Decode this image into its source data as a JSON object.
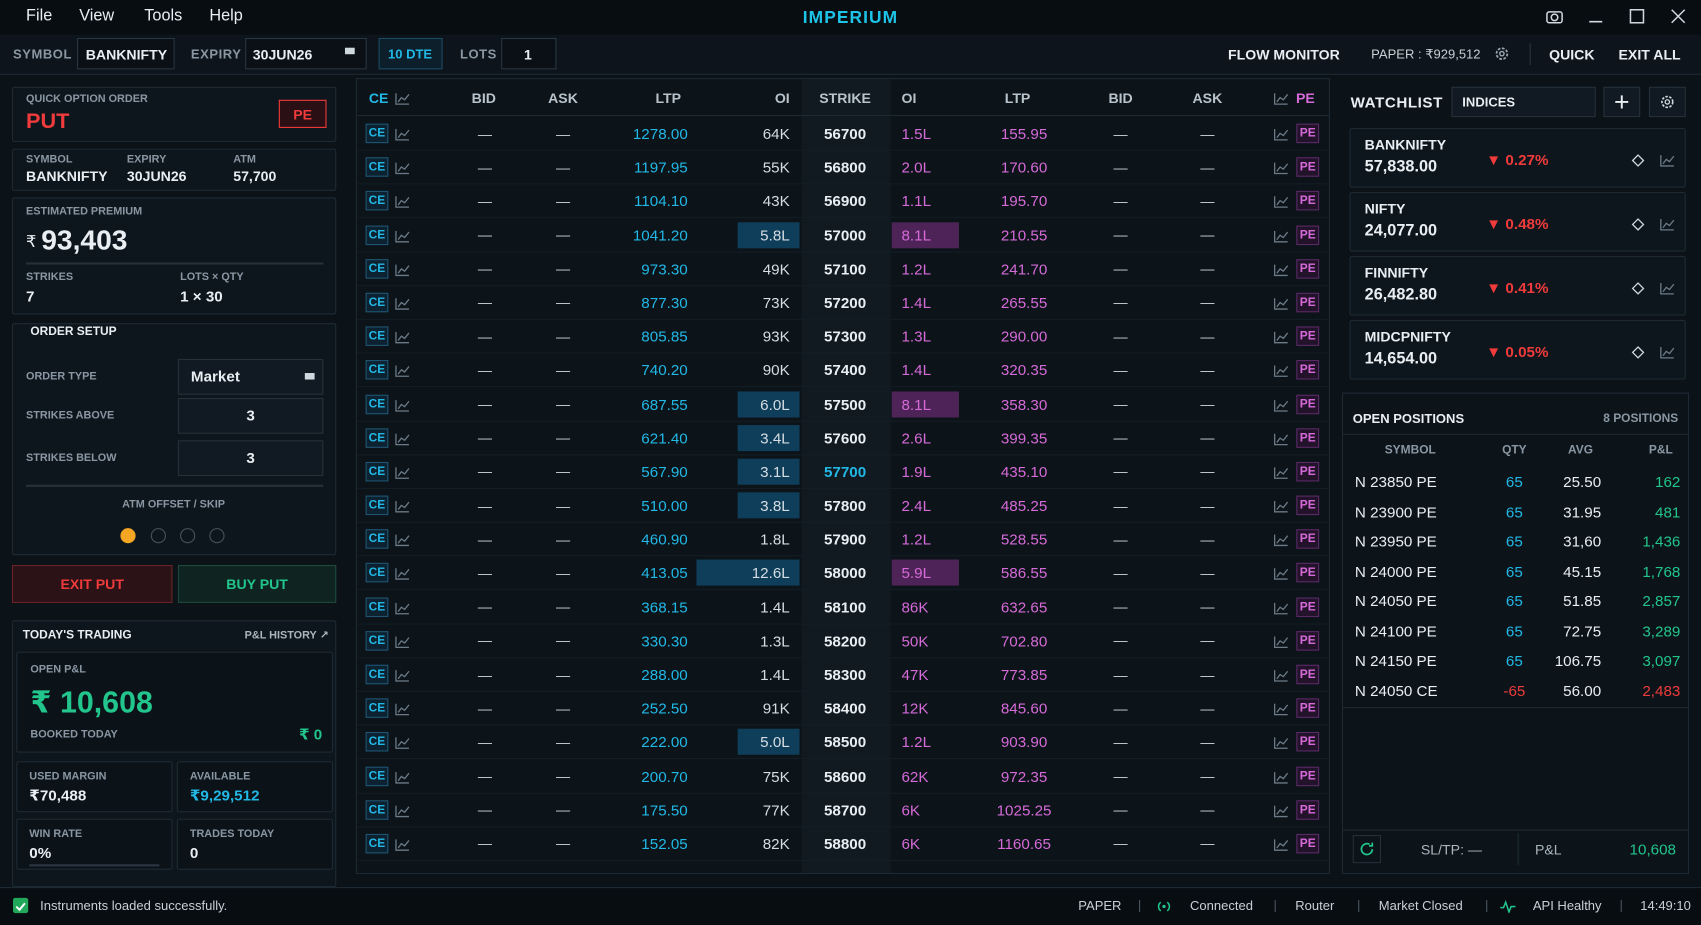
{
  "app": {
    "menu": [
      "File",
      "View",
      "Tools",
      "Help"
    ],
    "title": "IMPERIUM"
  },
  "toolbar": {
    "symbol_label": "SYMBOL",
    "symbol": "BANKNIFTY",
    "expiry_label": "EXPIRY",
    "expiry": "30JUN26",
    "dte": "10 DTE",
    "lots_label": "LOTS",
    "lots": "1",
    "flow_monitor": "FLOW MONITOR",
    "paper": "PAPER : ₹929,512",
    "quick": "QUICK",
    "exit_all": "EXIT ALL"
  },
  "quick_order": {
    "heading": "QUICK OPTION ORDER",
    "side": "PUT",
    "badge": "PE",
    "info": [
      {
        "label": "SYMBOL",
        "value": "BANKNIFTY"
      },
      {
        "label": "EXPIRY",
        "value": "30JUN26"
      },
      {
        "label": "ATM",
        "value": "57,700"
      }
    ],
    "premium_label": "ESTIMATED PREMIUM",
    "currency": "₹",
    "premium": "93,403",
    "strikes_label": "STRIKES",
    "strikes": "7",
    "lots_qty_label": "LOTS × QTY",
    "lots_qty": "1 × 30"
  },
  "order_setup": {
    "title": "ORDER SETUP",
    "rows": [
      {
        "label": "ORDER TYPE",
        "value": "Market"
      },
      {
        "label": "STRIKES ABOVE",
        "value": "3"
      },
      {
        "label": "STRIKES BELOW",
        "value": "3"
      }
    ],
    "offset_label": "ATM OFFSET / SKIP",
    "exit_button": "EXIT PUT",
    "buy_button": "BUY PUT"
  },
  "trading": {
    "title": "TODAY'S TRADING",
    "history": "P&L HISTORY ↗",
    "open_pnl_label": "OPEN P&L",
    "open_pnl": "₹ 10,608",
    "booked_label": "BOOKED TODAY",
    "booked": "₹ 0",
    "stats": [
      {
        "label": "USED MARGIN",
        "value": "₹70,488"
      },
      {
        "label": "AVAILABLE",
        "value": "₹9,29,512"
      },
      {
        "label": "WIN RATE",
        "value": "0%"
      },
      {
        "label": "TRADES TODAY",
        "value": "0"
      }
    ]
  },
  "chain": {
    "headers": [
      "CE",
      "BID",
      "ASK",
      "LTP",
      "OI",
      "STRIKE",
      "OI",
      "LTP",
      "BID",
      "ASK",
      "PE"
    ],
    "ce_tag": "CE",
    "pe_tag": "PE",
    "atm_strike": 57700,
    "rows": [
      {
        "ce_bid": "—",
        "ce_ask": "—",
        "ce_ltp": "1278.00",
        "ce_oi": "64K",
        "strike": 56700,
        "pe_oi": "1.5L",
        "pe_ltp": "155.95",
        "pe_bid": "—",
        "pe_ask": "—"
      },
      {
        "ce_bid": "—",
        "ce_ask": "—",
        "ce_ltp": "1197.95",
        "ce_oi": "55K",
        "strike": 56800,
        "pe_oi": "2.0L",
        "pe_ltp": "170.60",
        "pe_bid": "—",
        "pe_ask": "—"
      },
      {
        "ce_bid": "—",
        "ce_ask": "—",
        "ce_ltp": "1104.10",
        "ce_oi": "43K",
        "strike": 56900,
        "pe_oi": "1.1L",
        "pe_ltp": "195.70",
        "pe_bid": "—",
        "pe_ask": "—"
      },
      {
        "ce_bid": "—",
        "ce_ask": "—",
        "ce_ltp": "1041.20",
        "ce_oi": "5.8L",
        "ce_hl": true,
        "strike": 57000,
        "pe_oi": "8.1L",
        "pe_hl": true,
        "pe_ltp": "210.55",
        "pe_bid": "—",
        "pe_ask": "—"
      },
      {
        "ce_bid": "—",
        "ce_ask": "—",
        "ce_ltp": "973.30",
        "ce_oi": "49K",
        "strike": 57100,
        "pe_oi": "1.2L",
        "pe_ltp": "241.70",
        "pe_bid": "—",
        "pe_ask": "—"
      },
      {
        "ce_bid": "—",
        "ce_ask": "—",
        "ce_ltp": "877.30",
        "ce_oi": "73K",
        "strike": 57200,
        "pe_oi": "1.4L",
        "pe_ltp": "265.55",
        "pe_bid": "—",
        "pe_ask": "—"
      },
      {
        "ce_bid": "—",
        "ce_ask": "—",
        "ce_ltp": "805.85",
        "ce_oi": "93K",
        "strike": 57300,
        "pe_oi": "1.3L",
        "pe_ltp": "290.00",
        "pe_bid": "—",
        "pe_ask": "—"
      },
      {
        "ce_bid": "—",
        "ce_ask": "—",
        "ce_ltp": "740.20",
        "ce_oi": "90K",
        "strike": 57400,
        "pe_oi": "1.4L",
        "pe_ltp": "320.35",
        "pe_bid": "—",
        "pe_ask": "—"
      },
      {
        "ce_bid": "—",
        "ce_ask": "—",
        "ce_ltp": "687.55",
        "ce_oi": "6.0L",
        "ce_hl": true,
        "strike": 57500,
        "pe_oi": "8.1L",
        "pe_hl": true,
        "pe_ltp": "358.30",
        "pe_bid": "—",
        "pe_ask": "—"
      },
      {
        "ce_bid": "—",
        "ce_ask": "—",
        "ce_ltp": "621.40",
        "ce_oi": "3.4L",
        "ce_hl": true,
        "strike": 57600,
        "pe_oi": "2.6L",
        "pe_ltp": "399.35",
        "pe_bid": "—",
        "pe_ask": "—"
      },
      {
        "ce_bid": "—",
        "ce_ask": "—",
        "ce_ltp": "567.90",
        "ce_oi": "3.1L",
        "ce_hl": true,
        "strike": 57700,
        "pe_oi": "1.9L",
        "pe_ltp": "435.10",
        "pe_bid": "—",
        "pe_ask": "—"
      },
      {
        "ce_bid": "—",
        "ce_ask": "—",
        "ce_ltp": "510.00",
        "ce_oi": "3.8L",
        "ce_hl": true,
        "strike": 57800,
        "pe_oi": "2.4L",
        "pe_ltp": "485.25",
        "pe_bid": "—",
        "pe_ask": "—"
      },
      {
        "ce_bid": "—",
        "ce_ask": "—",
        "ce_ltp": "460.90",
        "ce_oi": "1.8L",
        "strike": 57900,
        "pe_oi": "1.2L",
        "pe_ltp": "528.55",
        "pe_bid": "—",
        "pe_ask": "—"
      },
      {
        "ce_bid": "—",
        "ce_ask": "—",
        "ce_ltp": "413.05",
        "ce_oi": "12.6L",
        "ce_hl": true,
        "strike": 58000,
        "pe_oi": "5.9L",
        "pe_hl": true,
        "pe_ltp": "586.55",
        "pe_bid": "—",
        "pe_ask": "—"
      },
      {
        "ce_bid": "—",
        "ce_ask": "—",
        "ce_ltp": "368.15",
        "ce_oi": "1.4L",
        "strike": 58100,
        "pe_oi": "86K",
        "pe_ltp": "632.65",
        "pe_bid": "—",
        "pe_ask": "—"
      },
      {
        "ce_bid": "—",
        "ce_ask": "—",
        "ce_ltp": "330.30",
        "ce_oi": "1.3L",
        "strike": 58200,
        "pe_oi": "50K",
        "pe_ltp": "702.80",
        "pe_bid": "—",
        "pe_ask": "—"
      },
      {
        "ce_bid": "—",
        "ce_ask": "—",
        "ce_ltp": "288.00",
        "ce_oi": "1.4L",
        "strike": 58300,
        "pe_oi": "47K",
        "pe_ltp": "773.85",
        "pe_bid": "—",
        "pe_ask": "—"
      },
      {
        "ce_bid": "—",
        "ce_ask": "—",
        "ce_ltp": "252.50",
        "ce_oi": "91K",
        "strike": 58400,
        "pe_oi": "12K",
        "pe_ltp": "845.60",
        "pe_bid": "—",
        "pe_ask": "—"
      },
      {
        "ce_bid": "—",
        "ce_ask": "—",
        "ce_ltp": "222.00",
        "ce_oi": "5.0L",
        "ce_hl": true,
        "strike": 58500,
        "pe_oi": "1.2L",
        "pe_ltp": "903.90",
        "pe_bid": "—",
        "pe_ask": "—"
      },
      {
        "ce_bid": "—",
        "ce_ask": "—",
        "ce_ltp": "200.70",
        "ce_oi": "75K",
        "strike": 58600,
        "pe_oi": "62K",
        "pe_ltp": "972.35",
        "pe_bid": "—",
        "pe_ask": "—"
      },
      {
        "ce_bid": "—",
        "ce_ask": "—",
        "ce_ltp": "175.50",
        "ce_oi": "77K",
        "strike": 58700,
        "pe_oi": "6K",
        "pe_ltp": "1025.25",
        "pe_bid": "—",
        "pe_ask": "—"
      },
      {
        "ce_bid": "—",
        "ce_ask": "—",
        "ce_ltp": "152.05",
        "ce_oi": "82K",
        "strike": 58800,
        "pe_oi": "6K",
        "pe_ltp": "1160.65",
        "pe_bid": "—",
        "pe_ask": "—"
      }
    ]
  },
  "watchlist": {
    "title": "WATCHLIST",
    "filter": "INDICES",
    "items": [
      {
        "name": "BANKNIFTY",
        "price": "57,838.00",
        "change": "▼ 0.27%"
      },
      {
        "name": "NIFTY",
        "price": "24,077.00",
        "change": "▼ 0.48%"
      },
      {
        "name": "FINNIFTY",
        "price": "26,482.80",
        "change": "▼ 0.41%"
      },
      {
        "name": "MIDCPNIFTY",
        "price": "14,654.00",
        "change": "▼ 0.05%"
      }
    ]
  },
  "positions": {
    "title": "OPEN POSITIONS",
    "count": "8 POSITIONS",
    "columns": [
      "SYMBOL",
      "QTY",
      "AVG",
      "P&L"
    ],
    "rows": [
      {
        "symbol": "N 23850 PE",
        "qty": 65,
        "avg": "25.50",
        "pnl": "162"
      },
      {
        "symbol": "N 23900 PE",
        "qty": 65,
        "avg": "31.95",
        "pnl": "481"
      },
      {
        "symbol": "N 23950 PE",
        "qty": 65,
        "avg": "31,60",
        "pnl": "1,436"
      },
      {
        "symbol": "N 24000 PE",
        "qty": 65,
        "avg": "45.15",
        "pnl": "1,768"
      },
      {
        "symbol": "N 24050 PE",
        "qty": 65,
        "avg": "51.85",
        "pnl": "2,857"
      },
      {
        "symbol": "N 24100 PE",
        "qty": 65,
        "avg": "72.75",
        "pnl": "3,289"
      },
      {
        "symbol": "N 24150 PE",
        "qty": 65,
        "avg": "106.75",
        "pnl": "3,097"
      },
      {
        "symbol": "N 24050 CE",
        "qty": -65,
        "avg": "56.00",
        "pnl": "2,483"
      }
    ],
    "sltp": "SL/TP: —",
    "pnl_label": "P&L",
    "pnl_total": "10,608"
  },
  "status": {
    "message": "Instruments loaded successfully.",
    "mode": "PAPER",
    "connection": "Connected",
    "router": "Router",
    "market": "Market Closed",
    "api": "API Healthy",
    "time": "14:49:10"
  }
}
